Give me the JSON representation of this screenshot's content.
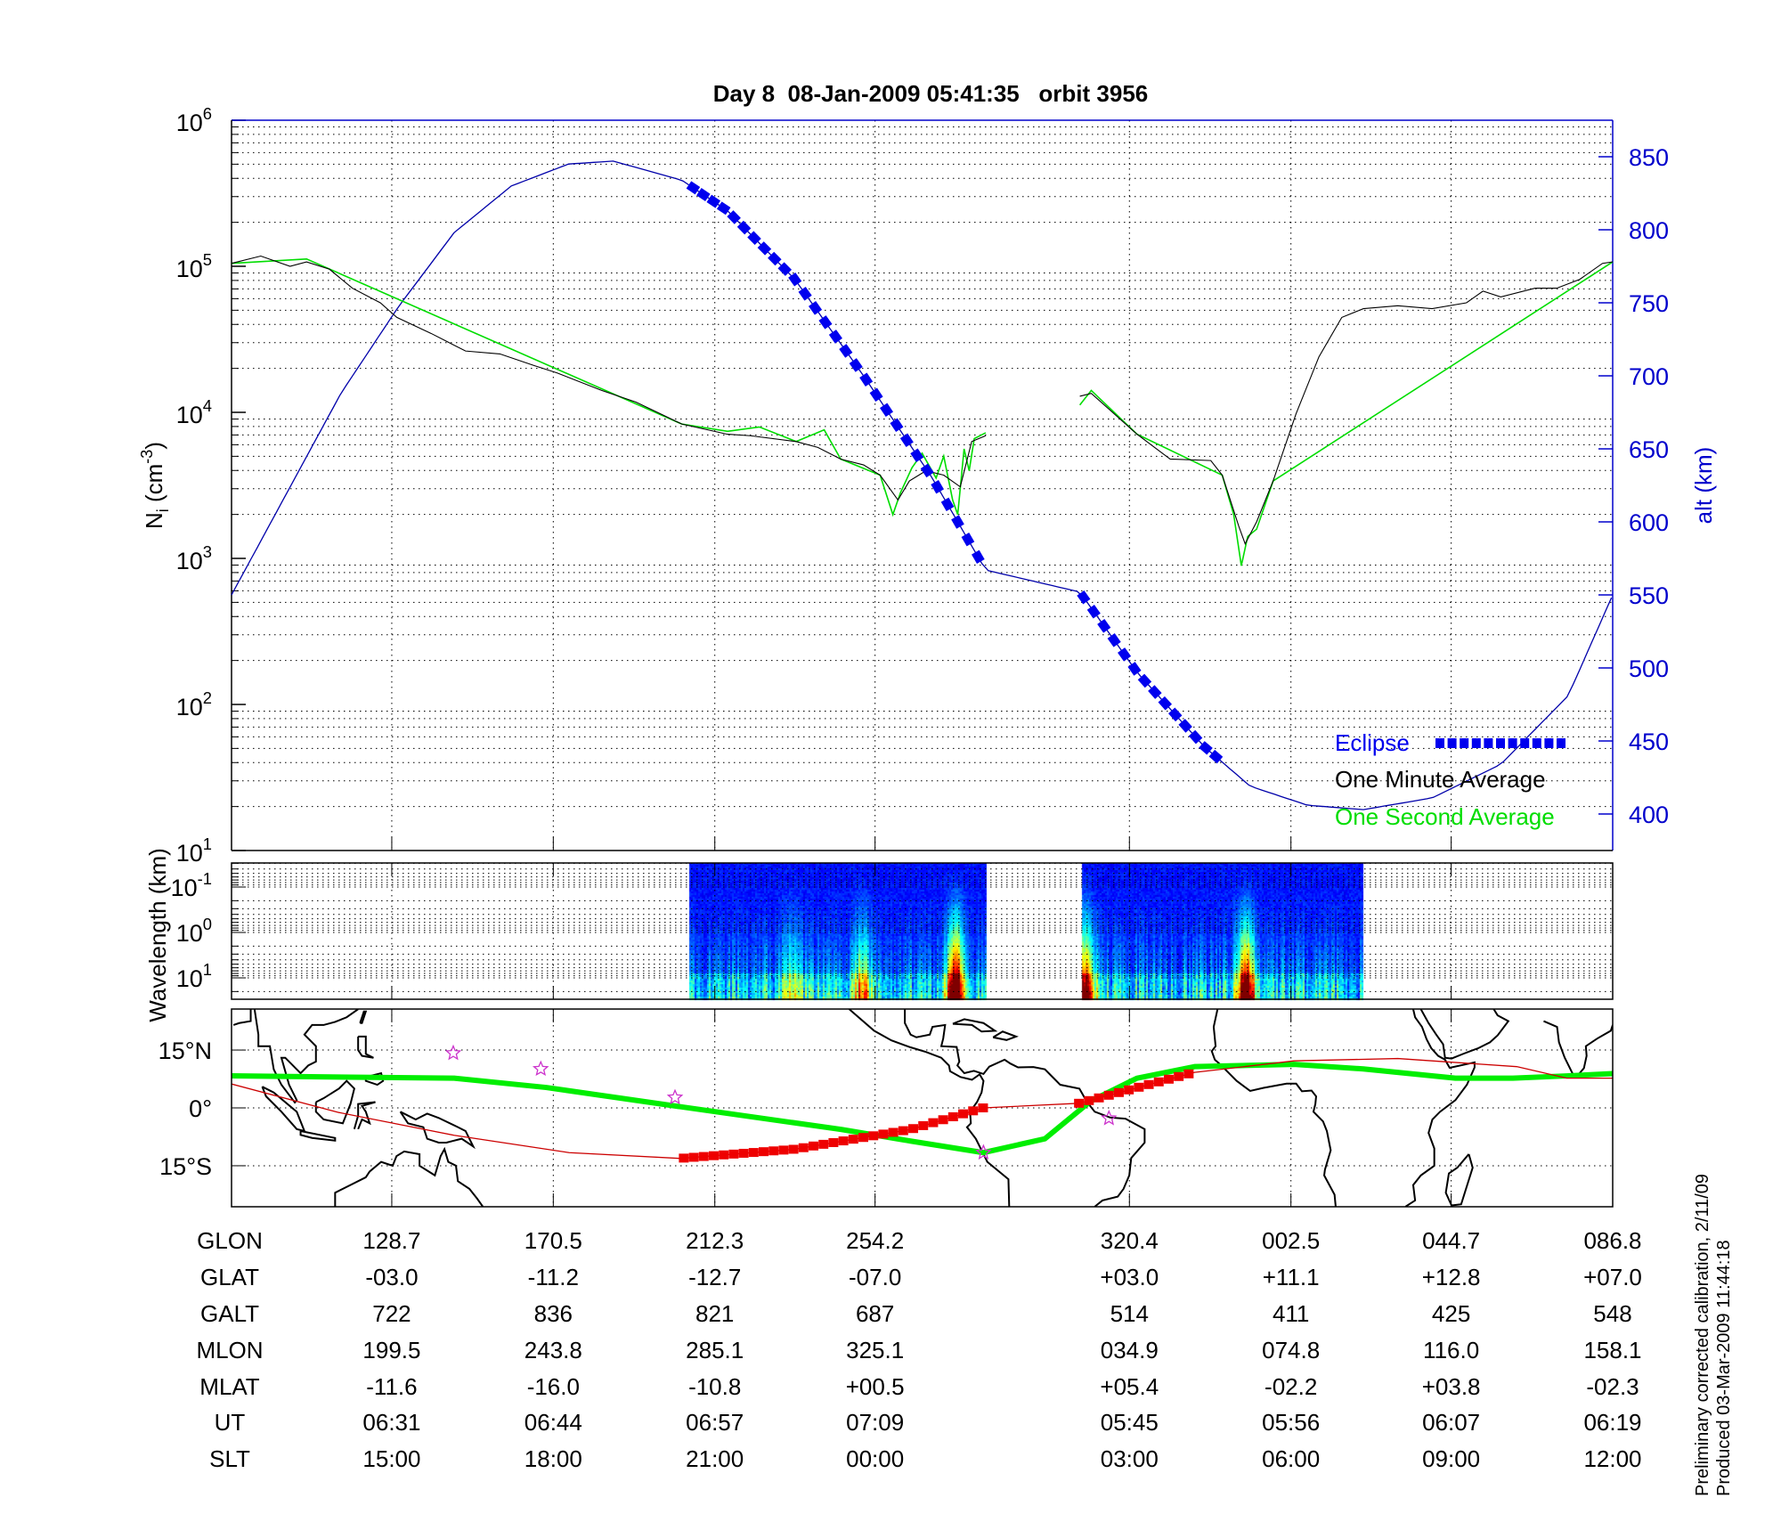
{
  "title": "Day 8  08-Jan-2009 05:41:35   orbit 3956",
  "chart_data": [
    {
      "type": "line",
      "name": "ion-density-and-altitude",
      "x_units": "minutes from left edge of plot",
      "xlim": [
        0,
        108.6
      ],
      "tick_minutes": [
        12.6,
        25.3,
        38.0,
        50.6,
        70.6,
        83.3,
        95.9,
        108.6
      ],
      "grid": true,
      "ylabel": {
        "base": "N",
        "sub": "i",
        "pre": " (cm",
        "exp": "-3",
        "post": ")"
      },
      "y_scale": "log",
      "ylim_log10": [
        1,
        6
      ],
      "y_tick_exponents": [
        "1",
        "2",
        "3",
        "4",
        "5",
        "6"
      ],
      "y_tick_base": "10",
      "y2label": "alt (km)",
      "y2lim": [
        375,
        880
      ],
      "y2_ticks": [
        "400",
        "450",
        "500",
        "550",
        "600",
        "650",
        "700",
        "750",
        "800",
        "850"
      ],
      "colors": {
        "minute": "#000000",
        "second": "#00dd00",
        "alt": "#0000aa",
        "eclipse": "#0000ee",
        "axis2": "#0000cc"
      },
      "legend": {
        "placement": "bottom-right",
        "eclipse": "Eclipse",
        "minute": "One Minute Average",
        "second": "One Second Average"
      },
      "series": [
        {
          "name": "One Minute Average",
          "unit": "log10 Ni",
          "segments": [
            [
              [
                0,
                5.02
              ],
              [
                2.3,
                5.07
              ],
              [
                4.6,
                5.0
              ],
              [
                5.9,
                5.03
              ],
              [
                7.7,
                4.98
              ],
              [
                9.5,
                4.85
              ],
              [
                11.7,
                4.75
              ],
              [
                13.0,
                4.65
              ],
              [
                15.7,
                4.54
              ],
              [
                18.4,
                4.42
              ],
              [
                21.1,
                4.4
              ],
              [
                23.8,
                4.32
              ],
              [
                25.6,
                4.27
              ],
              [
                29.1,
                4.15
              ],
              [
                31.8,
                4.07
              ],
              [
                35.4,
                3.92
              ],
              [
                39.0,
                3.85
              ],
              [
                40.8,
                3.84
              ],
              [
                44.4,
                3.8
              ],
              [
                46.1,
                3.76
              ],
              [
                47.9,
                3.68
              ],
              [
                49.7,
                3.64
              ],
              [
                51.0,
                3.57
              ],
              [
                52.4,
                3.4
              ],
              [
                53.3,
                3.53
              ],
              [
                54.6,
                3.6
              ],
              [
                56.0,
                3.57
              ],
              [
                57.3,
                3.49
              ],
              [
                58.2,
                3.8
              ],
              [
                59.3,
                3.84
              ]
            ],
            [
              [
                66.7,
                4.11
              ],
              [
                67.6,
                4.13
              ],
              [
                69.4,
                3.99
              ],
              [
                71.2,
                3.85
              ],
              [
                73.8,
                3.68
              ],
              [
                77.0,
                3.67
              ],
              [
                77.9,
                3.57
              ],
              [
                79.2,
                3.22
              ],
              [
                79.7,
                3.1
              ],
              [
                80.6,
                3.25
              ],
              [
                81.9,
                3.53
              ],
              [
                83.7,
                3.99
              ],
              [
                85.5,
                4.38
              ],
              [
                87.3,
                4.65
              ],
              [
                89.0,
                4.71
              ],
              [
                91.7,
                4.73
              ],
              [
                94.4,
                4.71
              ],
              [
                97.1,
                4.75
              ],
              [
                98.4,
                4.83
              ],
              [
                99.8,
                4.79
              ],
              [
                102.5,
                4.85
              ],
              [
                104.2,
                4.85
              ],
              [
                106.0,
                4.91
              ],
              [
                107.8,
                5.02
              ],
              [
                108.6,
                5.03
              ]
            ]
          ]
        },
        {
          "name": "One Second Average",
          "unit": "log10 Ni",
          "segments": [
            [
              [
                0,
                5.02
              ],
              [
                5.9,
                5.05
              ],
              [
                35.4,
                3.92
              ],
              [
                39.0,
                3.87
              ],
              [
                41.5,
                3.9
              ],
              [
                44.4,
                3.8
              ],
              [
                46.6,
                3.88
              ],
              [
                47.9,
                3.68
              ],
              [
                51.0,
                3.57
              ],
              [
                52.0,
                3.3
              ],
              [
                52.6,
                3.45
              ],
              [
                53.5,
                3.62
              ],
              [
                54.3,
                3.72
              ],
              [
                55.4,
                3.55
              ],
              [
                56.0,
                3.7
              ],
              [
                56.7,
                3.4
              ],
              [
                57.1,
                3.3
              ],
              [
                57.6,
                3.75
              ],
              [
                58.0,
                3.6
              ],
              [
                58.4,
                3.82
              ],
              [
                59.3,
                3.86
              ]
            ],
            [
              [
                66.7,
                4.05
              ],
              [
                67.6,
                4.15
              ],
              [
                71.2,
                3.85
              ],
              [
                77.9,
                3.57
              ],
              [
                78.8,
                3.3
              ],
              [
                79.4,
                2.95
              ],
              [
                79.9,
                3.15
              ],
              [
                80.6,
                3.2
              ],
              [
                81.9,
                3.53
              ],
              [
                108.6,
                5.03
              ]
            ]
          ]
        },
        {
          "name": "Altitude",
          "unit": "km",
          "axis": "right",
          "points": [
            [
              0,
              550
            ],
            [
              8.6,
              688
            ],
            [
              13.1,
              747
            ],
            [
              17.5,
              798
            ],
            [
              22.0,
              830
            ],
            [
              26.5,
              845
            ],
            [
              30.0,
              847
            ],
            [
              35.4,
              834
            ],
            [
              39.0,
              813
            ],
            [
              44.3,
              766
            ],
            [
              49.7,
              700
            ],
            [
              55.1,
              630
            ],
            [
              59.3,
              567
            ],
            [
              66.7,
              552
            ],
            [
              71.2,
              497
            ],
            [
              76.5,
              446
            ],
            [
              80.1,
              419
            ],
            [
              84.6,
              406
            ],
            [
              89.0,
              403
            ],
            [
              94.4,
              411
            ],
            [
              99.8,
              434
            ],
            [
              105.1,
              481
            ],
            [
              108.6,
              550
            ]
          ]
        },
        {
          "name": "Eclipse",
          "ranges_minutes": [
            [
              36.3,
              59.3
            ],
            [
              67.0,
              77.4
            ]
          ]
        }
      ]
    },
    {
      "type": "heatmap",
      "name": "wavelength-spectrogram",
      "ylabel": "Wavelength (km)",
      "y_tick_base": "10",
      "y_tick_exponents": [
        "-1",
        "0",
        "1"
      ],
      "ylim_log10": [
        -1.53,
        1.49
      ],
      "data_ranges_minutes": [
        [
          36.0,
          59.3
        ],
        [
          66.9,
          88.9
        ]
      ],
      "hotspots": [
        {
          "minute": 56.9,
          "strength": 1.0
        },
        {
          "minute": 79.7,
          "strength": 0.95
        },
        {
          "minute": 67.1,
          "strength": 0.8
        },
        {
          "minute": 49.5,
          "strength": 0.45
        },
        {
          "minute": 44.0,
          "strength": 0.35
        }
      ],
      "colormap": "jet"
    },
    {
      "type": "scatter",
      "name": "ground-track-map",
      "lon_start": 87,
      "lat_ticks": [
        "15°N",
        "0°",
        "15°S"
      ],
      "lat_tick_values": [
        15,
        0,
        -15
      ],
      "latlim": [
        -25.6,
        25.6
      ],
      "colors": {
        "dip_equator": "#00ee00",
        "track": "#cc0000",
        "eclipse": "#ee0000",
        "stars": "#cc33cc",
        "coast": "#000000"
      },
      "dip_equator": [
        [
          87,
          8.3
        ],
        [
          145,
          7.7
        ],
        [
          169,
          5.3
        ],
        [
          204,
          0.3
        ],
        [
          246,
          -5.6
        ],
        [
          264,
          -8.6
        ],
        [
          283,
          -11.6
        ],
        [
          299,
          -8.0
        ],
        [
          311,
          1.8
        ],
        [
          323,
          7.7
        ],
        [
          338,
          10.7
        ],
        [
          364,
          11.3
        ],
        [
          382,
          10.1
        ],
        [
          406,
          7.7
        ],
        [
          421,
          7.7
        ],
        [
          435,
          8.3
        ],
        [
          447,
          8.9
        ]
      ],
      "track": [
        [
          87,
          6.2
        ],
        [
          115,
          -1.2
        ],
        [
          145,
          -7.1
        ],
        [
          175,
          -11.6
        ],
        [
          204,
          -13.1
        ],
        [
          234,
          -10.7
        ],
        [
          264,
          -5.6
        ],
        [
          283,
          0
        ],
        [
          308,
          1.2
        ],
        [
          338,
          9.2
        ],
        [
          364,
          12.2
        ],
        [
          391,
          12.8
        ],
        [
          422,
          10.7
        ],
        [
          435,
          7.7
        ],
        [
          447,
          7.7
        ]
      ],
      "eclipse_lon_ranges": [
        [
          205,
          283
        ],
        [
          308,
          337
        ]
      ],
      "stations": [
        [
          144.8,
          14.2
        ],
        [
          167.6,
          10.1
        ],
        [
          202.6,
          2.7
        ],
        [
          315.7,
          -2.7
        ],
        [
          283,
          -11.6
        ]
      ]
    }
  ],
  "table": {
    "rows": [
      {
        "label": "GLON",
        "values": [
          "128.7",
          "170.5",
          "212.3",
          "254.2",
          "320.4",
          "002.5",
          "044.7",
          "086.8"
        ]
      },
      {
        "label": "GLAT",
        "values": [
          "-03.0",
          "-11.2",
          "-12.7",
          "-07.0",
          "+03.0",
          "+11.1",
          "+12.8",
          "+07.0"
        ]
      },
      {
        "label": "GALT",
        "values": [
          "722",
          "836",
          "821",
          "687",
          "514",
          "411",
          "425",
          "548"
        ]
      },
      {
        "label": "MLON",
        "values": [
          "199.5",
          "243.8",
          "285.1",
          "325.1",
          "034.9",
          "074.8",
          "116.0",
          "158.1"
        ]
      },
      {
        "label": "MLAT",
        "values": [
          "-11.6",
          "-16.0",
          "-10.8",
          "+00.5",
          "+05.4",
          "-02.2",
          "+03.8",
          "-02.3"
        ]
      },
      {
        "label": "UT",
        "values": [
          "06:31",
          "06:44",
          "06:57",
          "07:09",
          "05:45",
          "05:56",
          "06:07",
          "06:19"
        ]
      },
      {
        "label": "SLT",
        "values": [
          "15:00",
          "18:00",
          "21:00",
          "00:00",
          "03:00",
          "06:00",
          "09:00",
          "12:00"
        ]
      }
    ]
  },
  "footer": {
    "line1": "Preliminary corrected calibration, 2/11/09",
    "line2": "Produced 03-Mar-2009 11:44:18"
  }
}
